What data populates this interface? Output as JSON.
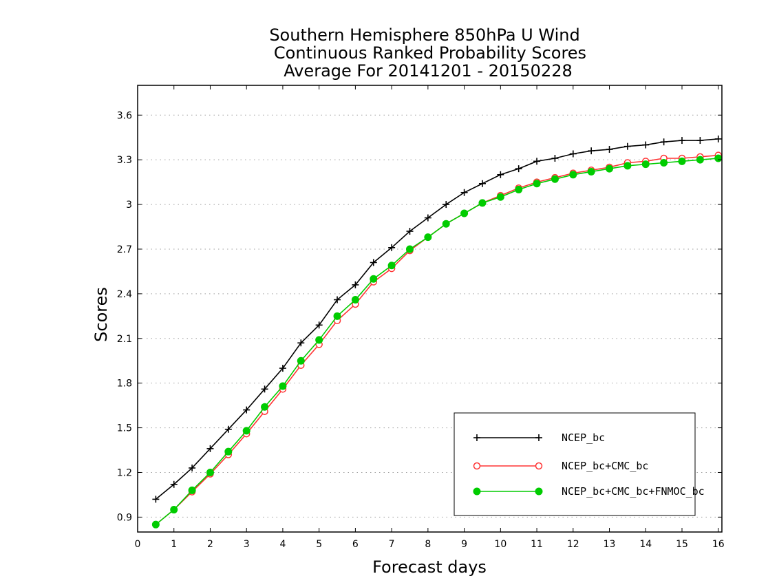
{
  "chart_data": {
    "type": "line",
    "title": [
      "Southern Hemisphere 850hPa U Wind",
      "Continuous Ranked Probability Scores",
      "Average For 20141201 - 20150228"
    ],
    "xlabel": "Forecast days",
    "ylabel": "Scores",
    "xlim": [
      0,
      16.1
    ],
    "ylim": [
      0.8,
      3.8
    ],
    "xticks": [
      "0",
      "1",
      "2",
      "3",
      "4",
      "5",
      "6",
      "7",
      "8",
      "9",
      "10",
      "11",
      "12",
      "13",
      "14",
      "15",
      "16"
    ],
    "yticks": [
      "0.9",
      "1.2",
      "1.5",
      "1.8",
      "2.1",
      "2.4",
      "2.7",
      "3",
      "3.3",
      "3.6"
    ],
    "grid": "horizontal dotted",
    "legend_position": "bottom-right",
    "x": [
      0.5,
      1,
      1.5,
      2,
      2.5,
      3,
      3.5,
      4,
      4.5,
      5,
      5.5,
      6,
      6.5,
      7,
      7.5,
      8,
      8.5,
      9,
      9.5,
      10,
      10.5,
      11,
      11.5,
      12,
      12.5,
      13,
      13.5,
      14,
      14.5,
      15,
      15.5,
      16
    ],
    "series": [
      {
        "name": "NCEP_bc",
        "color": "#000000",
        "marker": "plus",
        "values": [
          1.02,
          1.12,
          1.23,
          1.36,
          1.49,
          1.62,
          1.76,
          1.9,
          2.07,
          2.19,
          2.36,
          2.46,
          2.61,
          2.71,
          2.82,
          2.91,
          3.0,
          3.08,
          3.14,
          3.2,
          3.24,
          3.29,
          3.31,
          3.34,
          3.36,
          3.37,
          3.39,
          3.4,
          3.42,
          3.43,
          3.43,
          3.44
        ]
      },
      {
        "name": "NCEP_bc+CMC_bc",
        "color": "#ff3333",
        "marker": "open-circle",
        "values": [
          0.85,
          0.95,
          1.07,
          1.19,
          1.32,
          1.46,
          1.61,
          1.76,
          1.92,
          2.06,
          2.22,
          2.33,
          2.48,
          2.57,
          2.69,
          2.78,
          2.87,
          2.94,
          3.01,
          3.06,
          3.11,
          3.15,
          3.18,
          3.21,
          3.23,
          3.25,
          3.28,
          3.29,
          3.31,
          3.31,
          3.32,
          3.33
        ]
      },
      {
        "name": "NCEP_bc+CMC_bc+FNMOC_bc",
        "color": "#00cc00",
        "marker": "filled-circle",
        "values": [
          0.85,
          0.95,
          1.08,
          1.2,
          1.34,
          1.48,
          1.64,
          1.78,
          1.95,
          2.09,
          2.25,
          2.36,
          2.5,
          2.59,
          2.7,
          2.78,
          2.87,
          2.94,
          3.01,
          3.05,
          3.1,
          3.14,
          3.17,
          3.2,
          3.22,
          3.24,
          3.26,
          3.27,
          3.28,
          3.29,
          3.3,
          3.31
        ]
      }
    ]
  }
}
